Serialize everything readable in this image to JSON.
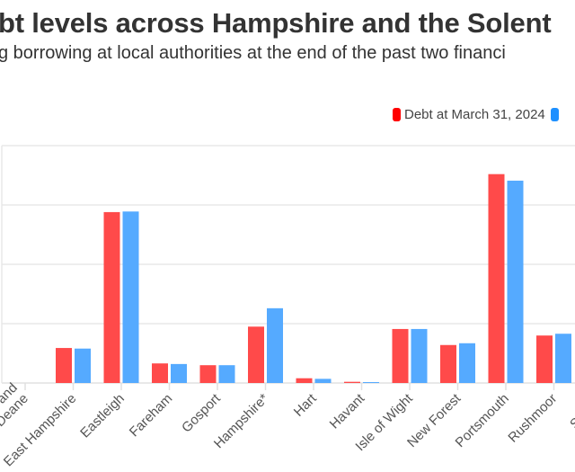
{
  "title": "bt levels across Hampshire and the Solent",
  "subtitle": "g borrowing at local authorities at the end of the past two financi",
  "chart_data": {
    "type": "bar",
    "categories": [
      "Basingstoke and Deane",
      "East Hampshire",
      "Eastleigh",
      "Fareham",
      "Gosport",
      "Hampshire*",
      "Hart",
      "Havant",
      "Isle of Wight",
      "New Forest",
      "Portsmouth",
      "Rushmoor",
      "Southampton"
    ],
    "category_labels_visible": [
      "ke and\nDeane",
      "East Hampshire",
      "Eastleigh",
      "Fareham",
      "Gosport",
      "Hampshire*",
      "Hart",
      "Havant",
      "Isle of Wight",
      "New Forest",
      "Portsmouth",
      "Rushmoor",
      "Southa"
    ],
    "series": [
      {
        "name": "Debt at March 31, 2024",
        "color": "#ff4a4a",
        "values": [
          0,
          0.59,
          2.88,
          0.33,
          0.3,
          0.95,
          0.08,
          0.02,
          0.91,
          0.64,
          3.52,
          0.8,
          null
        ]
      },
      {
        "name": "",
        "color": "#55aaff",
        "values": [
          0,
          0.58,
          2.89,
          0.32,
          0.3,
          1.26,
          0.07,
          0.015,
          0.91,
          0.67,
          3.41,
          0.83,
          null
        ]
      }
    ],
    "ylim": [
      0,
      4
    ],
    "grid": true,
    "legend_placement": "top-right",
    "legend_swatch_colors": [
      "#ff0000",
      "#1e90ff"
    ]
  }
}
